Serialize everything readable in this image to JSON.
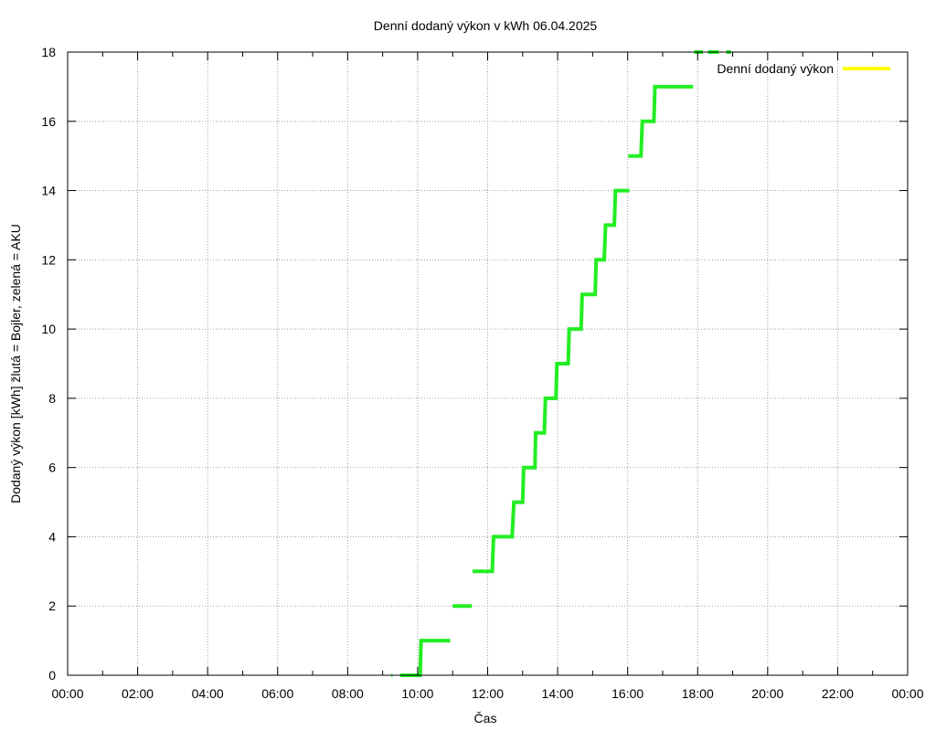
{
  "chart_data": {
    "type": "line",
    "title": "Denní dodaný výkon v kWh 06.04.2025",
    "xlabel": "Čas",
    "ylabel": "Dodaný výkon [kWh]  žlutá = Bojler, zelená = AKU",
    "xlim": [
      0,
      24
    ],
    "ylim": [
      0,
      18
    ],
    "x_ticks": [
      0,
      2,
      4,
      6,
      8,
      10,
      12,
      14,
      16,
      18,
      20,
      22,
      24
    ],
    "x_tick_labels": [
      "00:00",
      "02:00",
      "04:00",
      "06:00",
      "08:00",
      "10:00",
      "12:00",
      "14:00",
      "16:00",
      "18:00",
      "20:00",
      "22:00",
      "00:00"
    ],
    "y_ticks": [
      0,
      2,
      4,
      6,
      8,
      10,
      12,
      14,
      16,
      18
    ],
    "y_tick_labels": [
      "0",
      "2",
      "4",
      "6",
      "8",
      "10",
      "12",
      "14",
      "16",
      "18"
    ],
    "grid": true,
    "legend_position": "top-right",
    "colors": {
      "bojler": "#ffff00",
      "aku": "#22ee22",
      "grid": "#a0a0a0",
      "axis": "#000000"
    },
    "series": [
      {
        "name": "Denní dodaný výkon",
        "color": "#ffff00",
        "segments": []
      },
      {
        "name": "",
        "color": "#22ee22",
        "segments": [
          [
            [
              9.25,
              0
            ],
            [
              9.28,
              0
            ]
          ],
          [
            [
              9.5,
              0
            ],
            [
              10.07,
              0
            ],
            [
              10.1,
              1.0
            ],
            [
              10.93,
              1.0
            ]
          ],
          [
            [
              11.0,
              2.0
            ],
            [
              11.55,
              2.0
            ]
          ],
          [
            [
              11.57,
              3.0
            ],
            [
              12.13,
              3.0
            ],
            [
              12.17,
              4.0
            ],
            [
              12.7,
              4.0
            ],
            [
              12.75,
              5.0
            ],
            [
              13.0,
              5.0
            ],
            [
              13.03,
              6.0
            ],
            [
              13.35,
              6.0
            ],
            [
              13.37,
              7.0
            ],
            [
              13.62,
              7.0
            ],
            [
              13.65,
              8.0
            ],
            [
              13.95,
              8.0
            ],
            [
              13.98,
              9.0
            ],
            [
              14.3,
              9.0
            ],
            [
              14.33,
              10.0
            ],
            [
              14.67,
              10.0
            ],
            [
              14.7,
              11.0
            ],
            [
              15.07,
              11.0
            ],
            [
              15.1,
              12.0
            ],
            [
              15.33,
              12.0
            ],
            [
              15.37,
              13.0
            ],
            [
              15.62,
              13.0
            ],
            [
              15.65,
              14.0
            ],
            [
              16.05,
              14.0
            ]
          ],
          [
            [
              16.02,
              15.0
            ],
            [
              16.38,
              15.0
            ],
            [
              16.42,
              16.0
            ],
            [
              16.75,
              16.0
            ],
            [
              16.78,
              17.0
            ],
            [
              17.87,
              17.0
            ]
          ],
          [
            [
              17.9,
              18.0
            ],
            [
              18.15,
              18.0
            ]
          ],
          [
            [
              18.3,
              18.0
            ],
            [
              18.6,
              18.0
            ]
          ],
          [
            [
              18.82,
              18.0
            ],
            [
              18.95,
              18.0
            ]
          ]
        ]
      }
    ]
  }
}
